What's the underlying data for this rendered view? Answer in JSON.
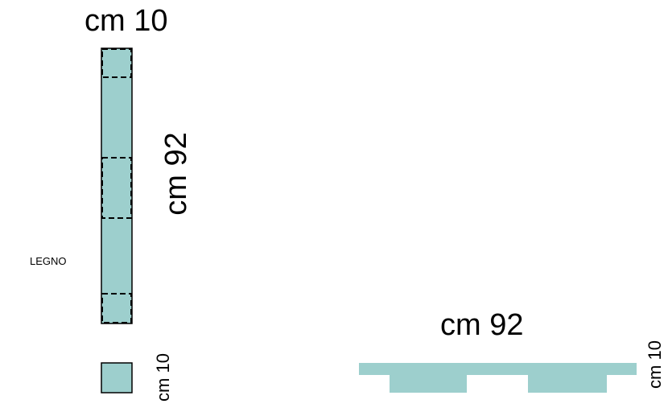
{
  "colors": {
    "wood_fill": "#9dcfcd",
    "stroke": "#000000",
    "background": "#ffffff"
  },
  "front_view": {
    "width_label": "cm 10",
    "height_label": "cm 92"
  },
  "material_label": "LEGNO",
  "section_view": {
    "size_label": "cm 10"
  },
  "side_view": {
    "length_label": "cm 92",
    "height_label": "cm 10"
  }
}
